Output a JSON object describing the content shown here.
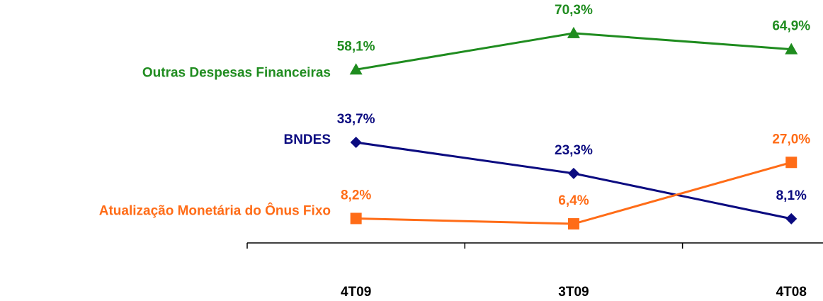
{
  "chart_data": {
    "type": "line",
    "categories": [
      "4T09",
      "3T09",
      "4T08"
    ],
    "ylim": [
      0,
      80
    ],
    "series": [
      {
        "name": "Outras Despesas Financeiras",
        "color": "#1f8c1f",
        "marker": "triangle",
        "values": [
          58.1,
          70.3,
          64.9
        ],
        "value_labels": [
          "58,1%",
          "70,3%",
          "64,9%"
        ]
      },
      {
        "name": "BNDES",
        "color": "#0b0b80",
        "marker": "diamond",
        "values": [
          33.7,
          23.3,
          8.1
        ],
        "value_labels": [
          "33,7%",
          "23,3%",
          "8,1%"
        ]
      },
      {
        "name": "Atualização Monetária do Ônus Fixo",
        "color": "#ff6c17",
        "marker": "square",
        "values": [
          8.2,
          6.4,
          27.0
        ],
        "value_labels": [
          "8,2%",
          "6,4%",
          "27,0%"
        ]
      }
    ]
  }
}
